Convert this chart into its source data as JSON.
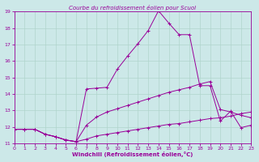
{
  "title": "Courbe du refroidissement éolien pour Scuol",
  "xlabel": "Windchill (Refroidissement éolien,°C)",
  "xlim": [
    0,
    23
  ],
  "ylim": [
    11,
    19
  ],
  "xticks": [
    0,
    1,
    2,
    3,
    4,
    5,
    6,
    7,
    8,
    9,
    10,
    11,
    12,
    13,
    14,
    15,
    16,
    17,
    18,
    19,
    20,
    21,
    22,
    23
  ],
  "yticks": [
    11,
    12,
    13,
    14,
    15,
    16,
    17,
    18,
    19
  ],
  "background_color": "#cce8e8",
  "grid_color": "#b0d4cc",
  "line_color": "#990099",
  "series1_x": [
    0,
    1,
    2,
    3,
    4,
    5,
    6,
    7,
    8,
    9,
    10,
    11,
    12,
    13,
    14,
    15,
    16,
    17,
    18,
    19,
    20,
    21,
    22,
    23
  ],
  "series1_y": [
    11.85,
    11.85,
    11.85,
    11.55,
    11.4,
    11.2,
    11.1,
    11.25,
    11.45,
    11.55,
    11.65,
    11.75,
    11.85,
    11.95,
    12.05,
    12.15,
    12.2,
    12.3,
    12.4,
    12.5,
    12.55,
    12.65,
    12.8,
    12.9
  ],
  "series2_x": [
    0,
    1,
    2,
    3,
    4,
    5,
    6,
    7,
    8,
    9,
    10,
    11,
    12,
    13,
    14,
    15,
    16,
    17,
    18,
    19,
    20,
    21,
    22,
    23
  ],
  "series2_y": [
    11.85,
    11.85,
    11.85,
    11.55,
    11.4,
    11.2,
    11.1,
    12.1,
    12.6,
    12.9,
    13.1,
    13.3,
    13.5,
    13.7,
    13.9,
    14.1,
    14.25,
    14.4,
    14.6,
    14.75,
    13.05,
    12.9,
    12.7,
    12.55
  ],
  "series3_x": [
    0,
    1,
    2,
    3,
    4,
    5,
    6,
    7,
    8,
    9,
    10,
    11,
    12,
    13,
    14,
    15,
    16,
    17,
    18,
    19,
    20,
    21,
    22,
    23
  ],
  "series3_y": [
    11.85,
    11.85,
    11.85,
    11.55,
    11.4,
    11.2,
    11.1,
    14.3,
    14.35,
    14.4,
    15.5,
    16.3,
    17.05,
    17.85,
    19.05,
    18.3,
    17.6,
    17.6,
    14.5,
    14.5,
    12.35,
    12.95,
    11.95,
    12.1
  ]
}
